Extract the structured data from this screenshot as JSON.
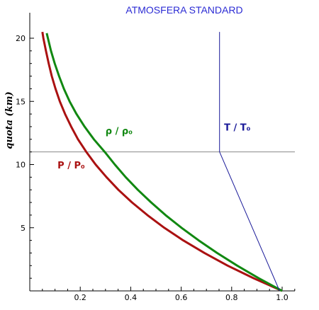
{
  "chart_data": {
    "type": "line",
    "title": "ATMOSFERA STANDARD",
    "xlabel": "",
    "ylabel": "quota (km)",
    "xlim": [
      0,
      1.05
    ],
    "ylim": [
      0,
      20.5
    ],
    "x_ticks": [
      0.2,
      0.4,
      0.6,
      0.8,
      1.0
    ],
    "x_tick_labels": [
      "0.2",
      "0.4",
      "0.6",
      "0.8",
      "1.0"
    ],
    "y_ticks": [
      5,
      10,
      15,
      20
    ],
    "y_tick_labels": [
      "5",
      "10",
      "15",
      "20"
    ],
    "reference_line": {
      "y": 11
    },
    "series": [
      {
        "name": "P / P₀",
        "color": "#aa1111",
        "points": [
          [
            1.0,
            0
          ],
          [
            0.887,
            1
          ],
          [
            0.784,
            2
          ],
          [
            0.692,
            3
          ],
          [
            0.608,
            4
          ],
          [
            0.533,
            5
          ],
          [
            0.466,
            6
          ],
          [
            0.405,
            7
          ],
          [
            0.351,
            8
          ],
          [
            0.304,
            9
          ],
          [
            0.261,
            10
          ],
          [
            0.224,
            11
          ],
          [
            0.191,
            12
          ],
          [
            0.164,
            13
          ],
          [
            0.14,
            14
          ],
          [
            0.119,
            15
          ],
          [
            0.102,
            16
          ],
          [
            0.087,
            17
          ],
          [
            0.075,
            18
          ],
          [
            0.064,
            19
          ],
          [
            0.054,
            20
          ],
          [
            0.05,
            20.5
          ]
        ]
      },
      {
        "name": "ρ / ρ₀",
        "color": "#118811",
        "points": [
          [
            1.0,
            0
          ],
          [
            0.907,
            1
          ],
          [
            0.822,
            2
          ],
          [
            0.742,
            3
          ],
          [
            0.669,
            4
          ],
          [
            0.601,
            5
          ],
          [
            0.538,
            6
          ],
          [
            0.481,
            7
          ],
          [
            0.428,
            8
          ],
          [
            0.38,
            9
          ],
          [
            0.337,
            10
          ],
          [
            0.297,
            11
          ],
          [
            0.254,
            12
          ],
          [
            0.217,
            13
          ],
          [
            0.185,
            14
          ],
          [
            0.158,
            15
          ],
          [
            0.135,
            16
          ],
          [
            0.116,
            17
          ],
          [
            0.099,
            18
          ],
          [
            0.084,
            19
          ],
          [
            0.072,
            20
          ],
          [
            0.067,
            20.4
          ]
        ]
      },
      {
        "name": "T / T₀",
        "color": "#1a1a99",
        "points": [
          [
            0.99,
            0
          ],
          [
            0.752,
            11
          ],
          [
            0.752,
            20.5
          ]
        ]
      }
    ]
  }
}
